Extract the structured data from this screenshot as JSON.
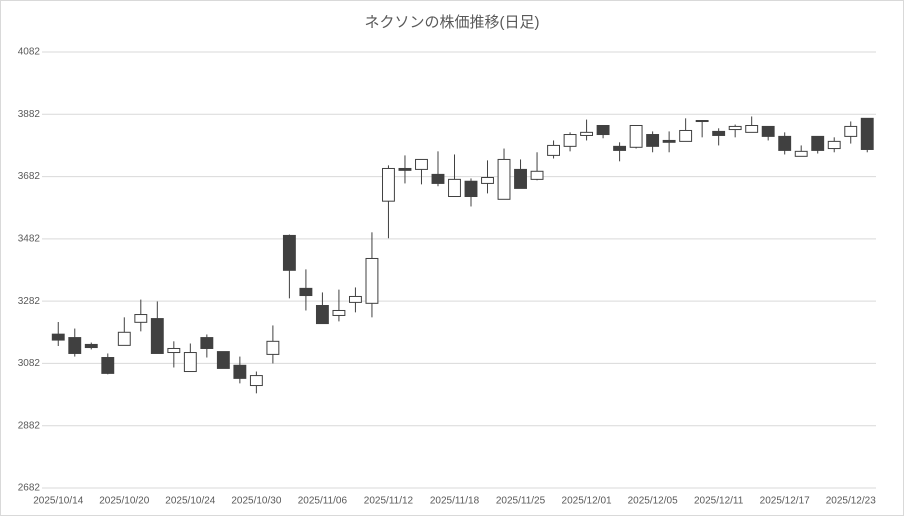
{
  "chart_data": {
    "type": "candlestick",
    "title": "ネクソンの株価推移(日足)",
    "categories": [
      "2025/10/14",
      null,
      null,
      null,
      "2025/10/20",
      null,
      null,
      null,
      "2025/10/24",
      null,
      null,
      null,
      "2025/10/30",
      null,
      null,
      null,
      "2025/11/06",
      null,
      null,
      null,
      "2025/11/12",
      null,
      null,
      null,
      "2025/11/18",
      null,
      null,
      null,
      "2025/11/25",
      null,
      null,
      null,
      "2025/12/01",
      null,
      null,
      null,
      "2025/12/05",
      null,
      null,
      null,
      "2025/12/11",
      null,
      null,
      null,
      "2025/12/17",
      null,
      null,
      null,
      "2025/12/23",
      null
    ],
    "open": [
      3176,
      3165,
      3143,
      3101,
      3140,
      3214,
      3226,
      3117,
      3056,
      3165,
      3120,
      3076,
      3011,
      3111,
      3493,
      3323,
      3268,
      3236,
      3278,
      3275,
      3603,
      3708,
      3705,
      3689,
      3618,
      3667,
      3660,
      3609,
      3705,
      3673,
      3750,
      3779,
      3814,
      3846,
      3779,
      3776,
      3817,
      3798,
      3795,
      3862,
      3827,
      3833,
      3824,
      3843,
      3811,
      3747,
      3811,
      3772,
      3811,
      3869
    ],
    "high": [
      3215,
      3194,
      3149,
      3114,
      3230,
      3287,
      3281,
      3153,
      3146,
      3175,
      3120,
      3104,
      3056,
      3204,
      3496,
      3384,
      3310,
      3319,
      3326,
      3503,
      3718,
      3750,
      3737,
      3763,
      3753,
      3676,
      3734,
      3772,
      3737,
      3760,
      3798,
      3824,
      3865,
      3846,
      3792,
      3846,
      3827,
      3827,
      3869,
      3862,
      3837,
      3849,
      3875,
      3843,
      3824,
      3782,
      3811,
      3808,
      3859,
      3869
    ],
    "low": [
      3138,
      3104,
      3127,
      3047,
      3140,
      3185,
      3114,
      3069,
      3056,
      3101,
      3066,
      3018,
      2986,
      3082,
      3291,
      3252,
      3210,
      3217,
      3246,
      3230,
      3484,
      3660,
      3657,
      3651,
      3618,
      3586,
      3628,
      3609,
      3644,
      3670,
      3740,
      3763,
      3798,
      3805,
      3731,
      3772,
      3760,
      3760,
      3795,
      3808,
      3782,
      3808,
      3824,
      3798,
      3753,
      3747,
      3756,
      3760,
      3788,
      3760
    ],
    "close": [
      3157,
      3114,
      3133,
      3050,
      3182,
      3239,
      3114,
      3130,
      3117,
      3130,
      3066,
      3034,
      3043,
      3153,
      3381,
      3300,
      3210,
      3252,
      3297,
      3419,
      3708,
      3702,
      3737,
      3660,
      3673,
      3618,
      3679,
      3737,
      3644,
      3699,
      3782,
      3817,
      3824,
      3817,
      3766,
      3846,
      3779,
      3792,
      3830,
      3859,
      3814,
      3843,
      3846,
      3811,
      3766,
      3763,
      3766,
      3795,
      3843,
      3769
    ],
    "up_color": "#ffffff",
    "down_color": "#404040",
    "edge_color": "#404040",
    "ylim": [
      2682,
      4082
    ],
    "yticks": [
      2682,
      2882,
      3082,
      3282,
      3482,
      3682,
      3882,
      4082
    ],
    "grid": true
  }
}
